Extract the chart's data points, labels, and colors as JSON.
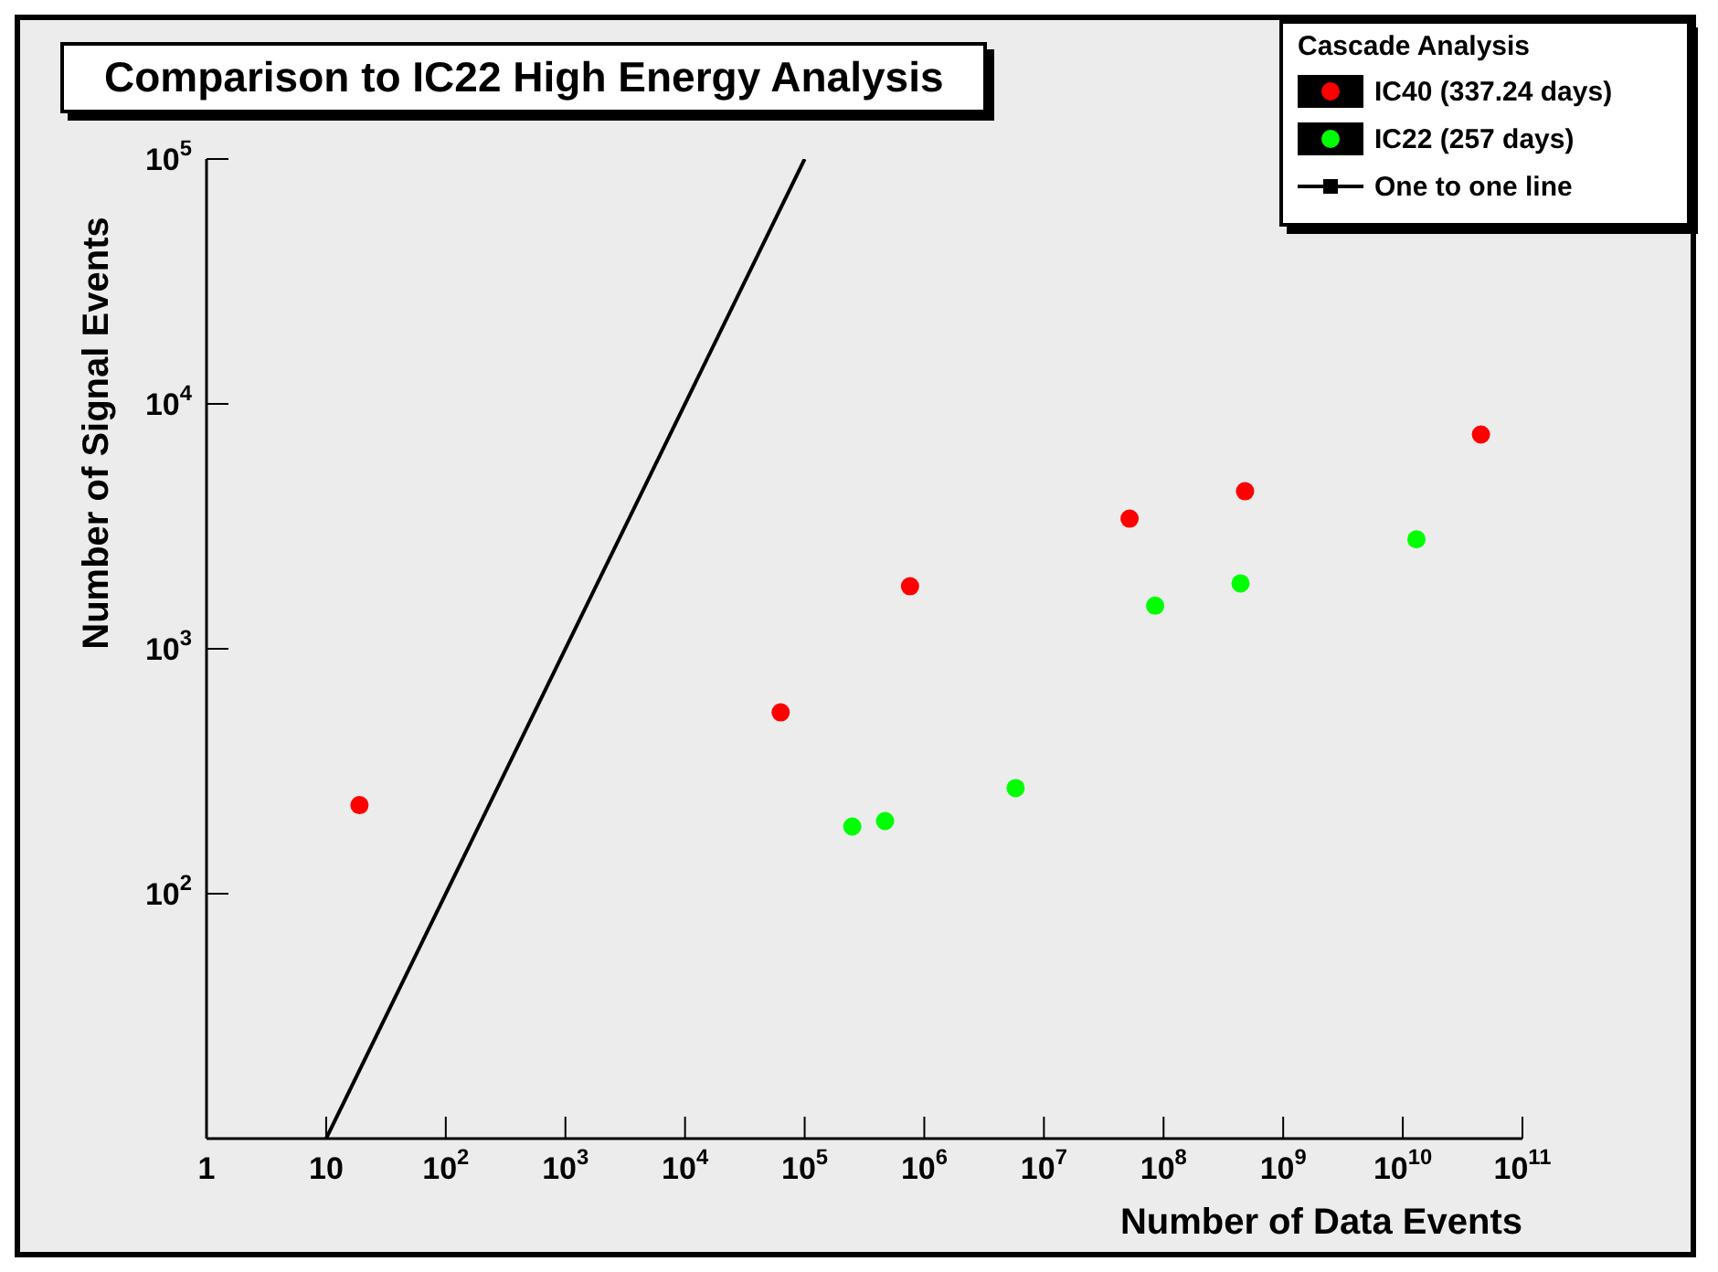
{
  "chart_data": {
    "type": "scatter",
    "title": "Comparison to IC22 High Energy Analysis",
    "xlabel": "Number of Data Events",
    "ylabel": "Number of Signal Events",
    "legend_title": "Cascade Analysis",
    "legend": "top right",
    "grid": false,
    "log": "xy",
    "marker": "circle",
    "xlim": [
      1,
      100000000000
    ],
    "ylim": [
      10,
      100000
    ],
    "xticks": [
      1,
      10,
      {
        "value": 100,
        "label": "10$^{2}$"
      },
      {
        "value": 1000,
        "label": "10$^{3}$"
      },
      {
        "value": 10000,
        "label": "10$^{4}$"
      },
      {
        "value": 100000,
        "label": "10$^{5}$"
      },
      {
        "value": 1000000,
        "label": "10$^{6}$"
      },
      {
        "value": 10000000,
        "label": "10$^{7}$"
      },
      {
        "value": 100000000,
        "label": "10$^{8}$"
      },
      {
        "value": 1000000000,
        "label": "10$^{9}$"
      },
      {
        "value": 10000000000,
        "label": "10$^{10}$"
      },
      {
        "value": 100000000000,
        "label": "10$^{11}$"
      }
    ],
    "yticks": [
      {
        "value": 100,
        "label": "10$^{2}$"
      },
      {
        "value": 1000,
        "label": "10$^{3}$"
      },
      {
        "value": 10000,
        "label": "10$^{4}$"
      },
      {
        "value": 100000,
        "label": "10$^{5}$"
      }
    ],
    "series": [
      {
        "name": "IC40 (337.24 days)",
        "color": "#ff0000",
        "x": [
          19,
          63000,
          760000,
          52000000,
          480000000,
          45000000000
        ],
        "values": [
          230,
          550,
          1800,
          3400,
          4400,
          7500
        ]
      },
      {
        "name": "IC22 (257 days)",
        "color": "#00ff00",
        "x": [
          250000,
          470000,
          5800000,
          85000000,
          440000000,
          13000000000
        ],
        "values": [
          188,
          198,
          270,
          1500,
          1850,
          2800
        ]
      },
      {
        "name": "One to one line",
        "type": "line",
        "color": "#000000",
        "marker": "none",
        "x": [
          10,
          100000
        ],
        "values": [
          10,
          100000
        ]
      }
    ]
  }
}
